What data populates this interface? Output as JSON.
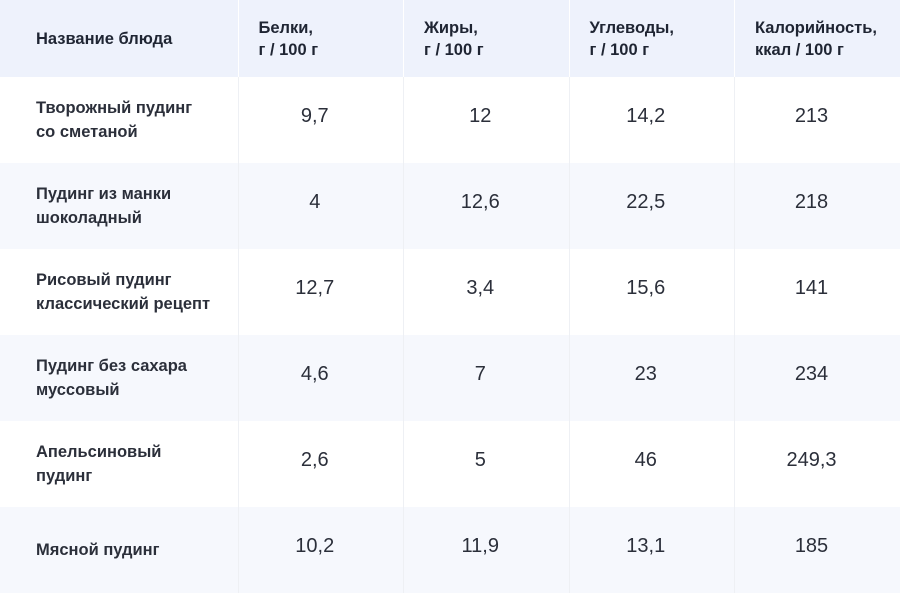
{
  "table": {
    "headers": [
      {
        "line1": "Название блюда",
        "line2": ""
      },
      {
        "line1": "Белки,",
        "line2": "г / 100 г"
      },
      {
        "line1": "Жиры,",
        "line2": "г / 100 г"
      },
      {
        "line1": "Углеводы,",
        "line2": "г / 100 г"
      },
      {
        "line1": "Калорийность,",
        "line2": "ккал / 100 г"
      }
    ],
    "rows": [
      {
        "name_line1": "Творожный пудинг",
        "name_line2": "со сметаной",
        "protein": "9,7",
        "fat": "12",
        "carbs": "14,2",
        "kcal": "213"
      },
      {
        "name_line1": "Пудинг из манки",
        "name_line2": "шоколадный",
        "protein": "4",
        "fat": "12,6",
        "carbs": "22,5",
        "kcal": "218"
      },
      {
        "name_line1": "Рисовый пудинг",
        "name_line2": "классический рецепт",
        "protein": "12,7",
        "fat": "3,4",
        "carbs": "15,6",
        "kcal": "141"
      },
      {
        "name_line1": "Пудинг без сахара",
        "name_line2": "муссовый",
        "protein": "4,6",
        "fat": "7",
        "carbs": "23",
        "kcal": "234"
      },
      {
        "name_line1": "Апельсиновый",
        "name_line2": "пудинг",
        "protein": "2,6",
        "fat": "5",
        "carbs": "46",
        "kcal": "249,3"
      },
      {
        "name_line1": "Мясной пудинг",
        "name_line2": "",
        "protein": "10,2",
        "fat": "11,9",
        "carbs": "13,1",
        "kcal": "185"
      }
    ]
  }
}
